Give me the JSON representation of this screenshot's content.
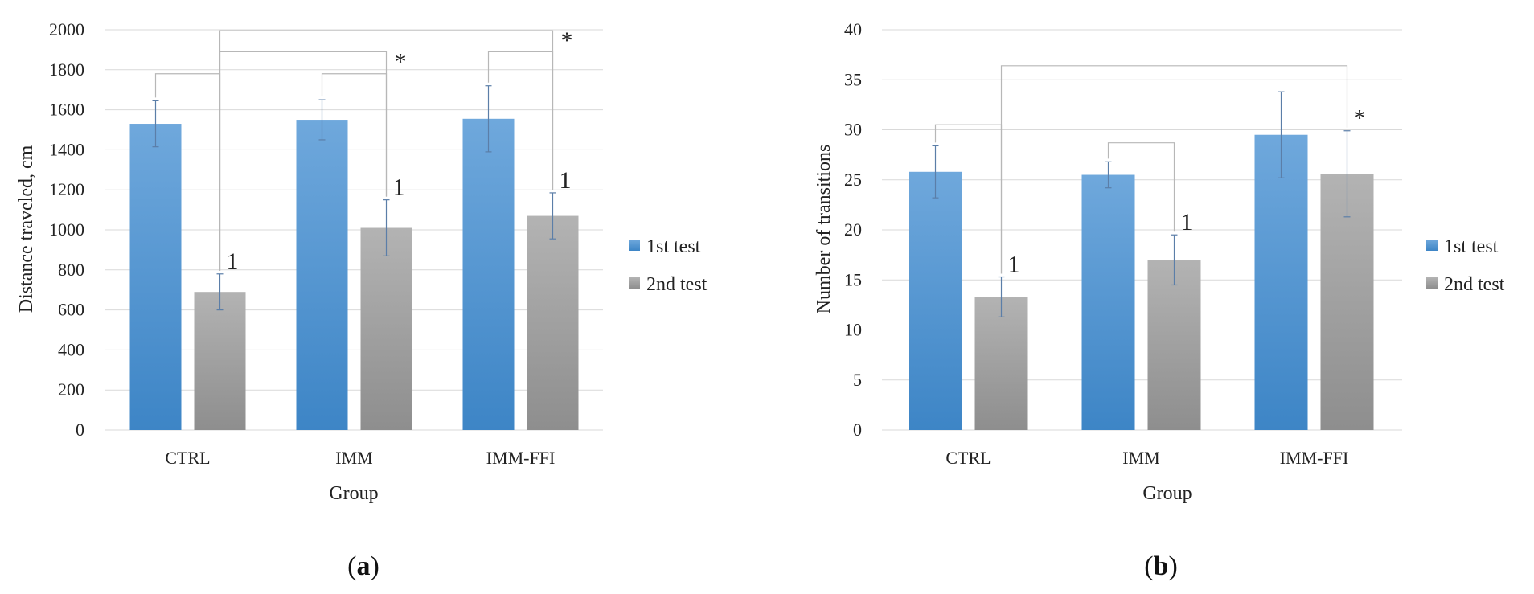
{
  "colors": {
    "series1_top": "#6fa8dc",
    "series1_bottom": "#3d85c6",
    "series2_top": "#b3b3b3",
    "series2_bottom": "#8e8e8e",
    "grid": "#d9d9d9",
    "error_bar": "#5b7ea8",
    "bracket": "#b7b7b7"
  },
  "chart_data": [
    {
      "id": "a",
      "type": "bar",
      "caption_open": "(",
      "caption_letter": "a",
      "caption_close": ")",
      "xlabel": "Group",
      "ylabel": "Distance traveled, cm",
      "ylim": [
        0,
        2000
      ],
      "yticks": [
        0,
        200,
        400,
        600,
        800,
        1000,
        1200,
        1400,
        1600,
        1800,
        2000
      ],
      "categories": [
        "CTRL",
        "IMM",
        "IMM-FFI"
      ],
      "series": [
        {
          "name": "1st test",
          "values": [
            1530,
            1550,
            1555
          ],
          "errors": [
            115,
            100,
            165
          ]
        },
        {
          "name": "2nd test",
          "values": [
            690,
            1010,
            1070
          ],
          "errors": [
            90,
            140,
            115
          ]
        }
      ],
      "grid": true,
      "legend": "right",
      "labels": [
        {
          "series": 1,
          "category": 0,
          "text": "1"
        },
        {
          "series": 1,
          "category": 1,
          "text": "1"
        },
        {
          "series": 1,
          "category": 2,
          "text": "1"
        }
      ],
      "brackets": [
        {
          "from": [
            0,
            0
          ],
          "to": [
            1,
            0
          ],
          "level": 1780,
          "text": ""
        },
        {
          "from": [
            0,
            1
          ],
          "to": [
            1,
            1
          ],
          "level": 1780,
          "text": ""
        },
        {
          "from": [
            0,
            2
          ],
          "to": [
            1,
            2
          ],
          "level": 1890,
          "text": ""
        },
        {
          "from": [
            1,
            0
          ],
          "to": [
            1,
            1
          ],
          "level": 1890,
          "text": "*"
        },
        {
          "from": [
            1,
            0
          ],
          "to": [
            1,
            2
          ],
          "level": 1995,
          "text": "*"
        }
      ]
    },
    {
      "id": "b",
      "type": "bar",
      "caption_open": "(",
      "caption_letter": "b",
      "caption_close": ")",
      "xlabel": "Group",
      "ylabel": "Number of transitions",
      "ylim": [
        0,
        40
      ],
      "yticks": [
        0,
        5,
        10,
        15,
        20,
        25,
        30,
        35,
        40
      ],
      "categories": [
        "CTRL",
        "IMM",
        "IMM-FFI"
      ],
      "series": [
        {
          "name": "1st test",
          "values": [
            25.8,
            25.5,
            29.5
          ],
          "errors": [
            2.6,
            1.3,
            4.3
          ]
        },
        {
          "name": "2nd test",
          "values": [
            13.3,
            17.0,
            25.6
          ],
          "errors": [
            2.0,
            2.5,
            4.3
          ]
        }
      ],
      "grid": true,
      "legend": "right",
      "labels": [
        {
          "series": 1,
          "category": 0,
          "text": "1"
        },
        {
          "series": 1,
          "category": 1,
          "text": "1"
        },
        {
          "series": 1,
          "category": 2,
          "text": "*"
        }
      ],
      "brackets": [
        {
          "from": [
            0,
            0
          ],
          "to": [
            1,
            0
          ],
          "level": 30.5,
          "text": ""
        },
        {
          "from": [
            0,
            1
          ],
          "to": [
            1,
            1
          ],
          "level": 28.7,
          "text": ""
        },
        {
          "from": [
            1,
            0
          ],
          "to": [
            1,
            2
          ],
          "level": 36.4,
          "text": ""
        }
      ]
    }
  ]
}
